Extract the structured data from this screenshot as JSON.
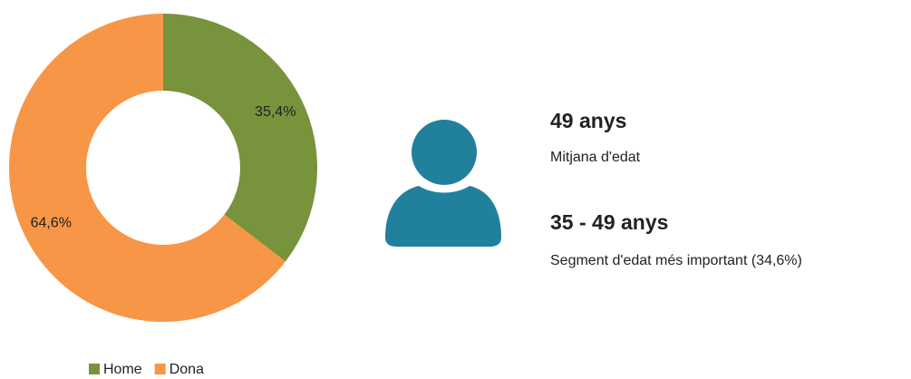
{
  "chart_data": {
    "type": "donut",
    "categories": [
      "Home",
      "Dona"
    ],
    "values": [
      35.4,
      64.6
    ],
    "value_labels": [
      "35,4%",
      "64,6%"
    ],
    "colors": [
      "#77933c",
      "#f79646"
    ],
    "legend": "bottom"
  },
  "stats": [
    {
      "value": "49 anys",
      "label": "Mitjana d'edat"
    },
    {
      "value": "35 - 49 anys",
      "label": "Segment d'edat més important (34,6%)"
    }
  ]
}
